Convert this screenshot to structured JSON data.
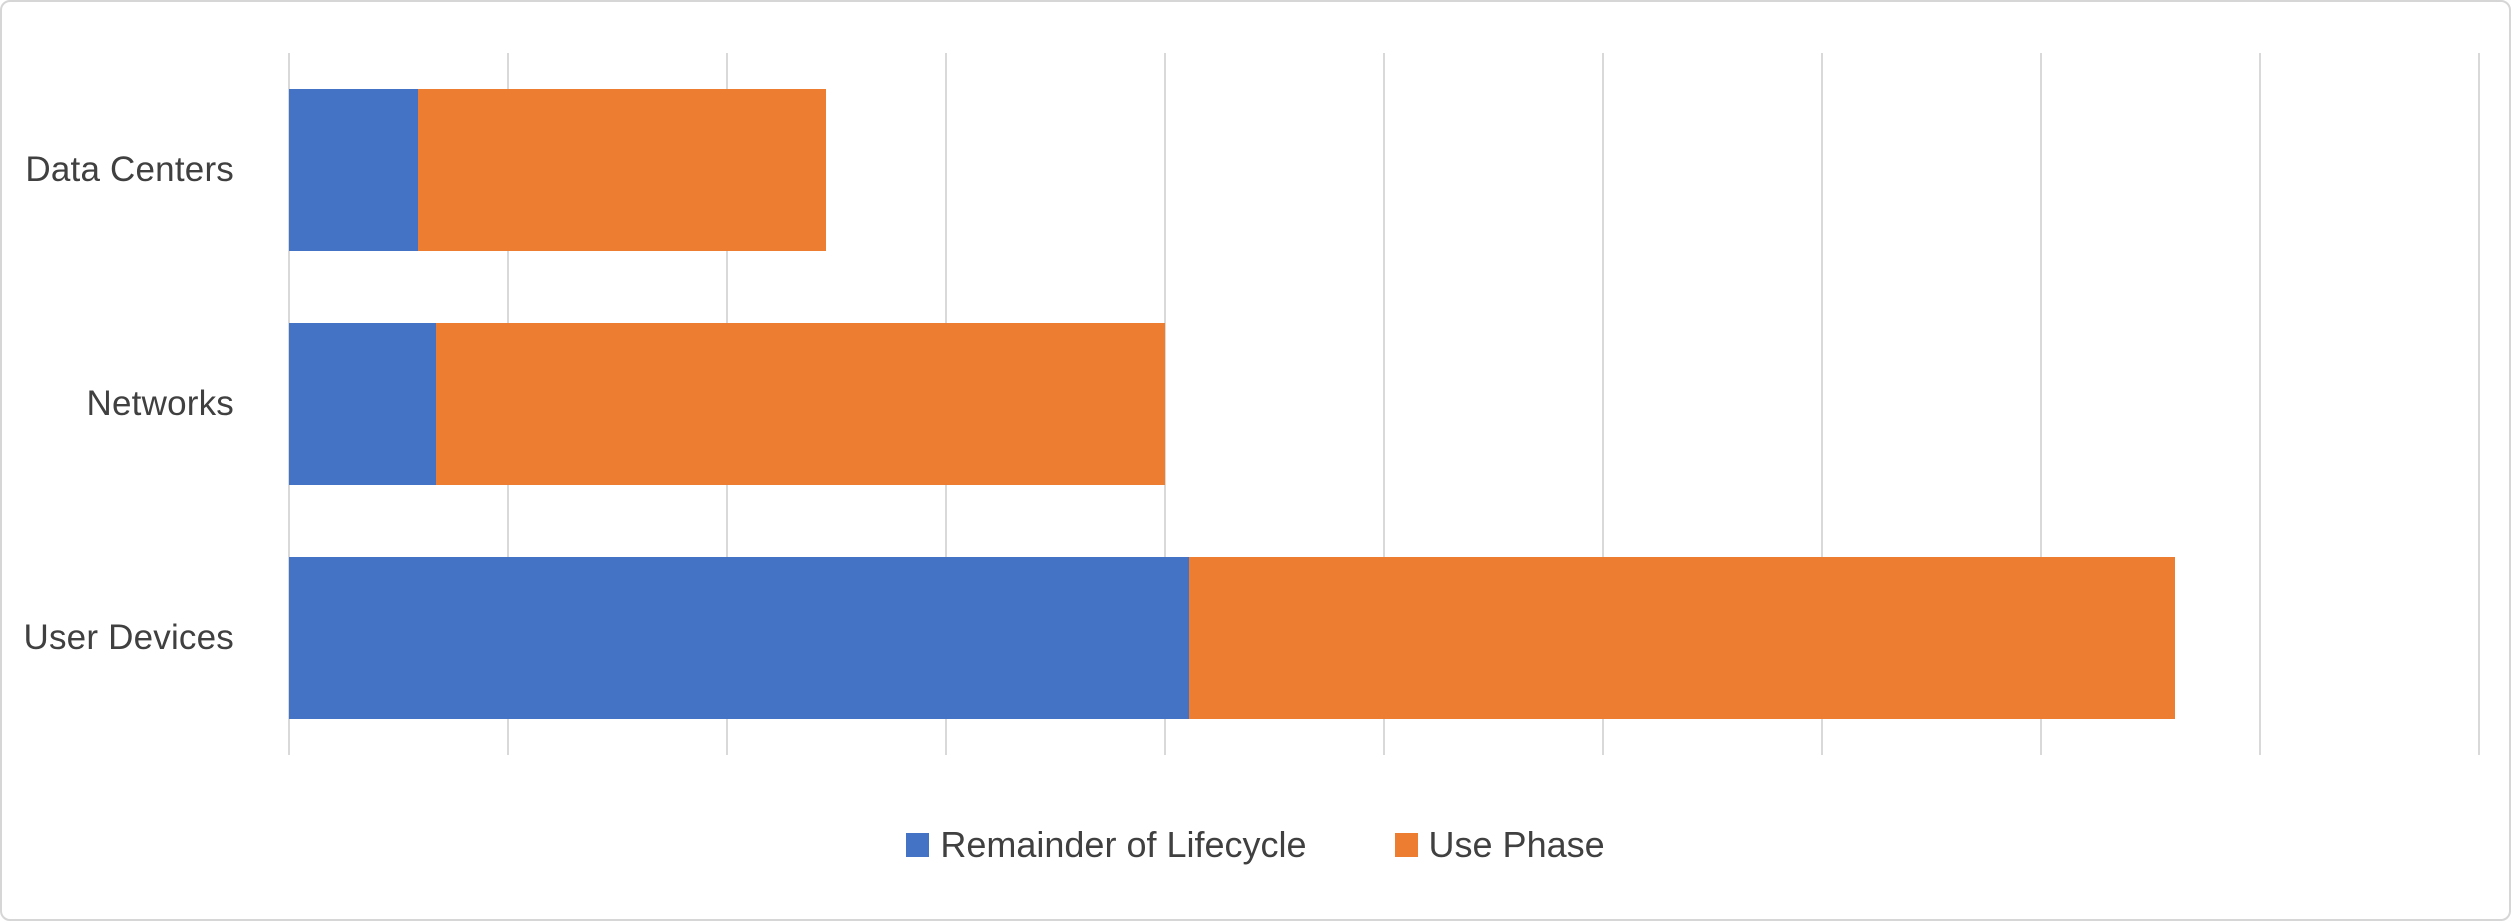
{
  "chart_data": {
    "type": "bar",
    "orientation": "horizontal",
    "stacked": true,
    "title": "",
    "xlabel": "",
    "ylabel": "",
    "categories": [
      "Data Centers",
      "Networks",
      "User Devices"
    ],
    "series": [
      {
        "name": "Remainder of Lifecycle",
        "color": "#4472C4",
        "values": [
          5.9,
          6.7,
          41.1
        ]
      },
      {
        "name": "Use Phase",
        "color": "#ED7D31",
        "values": [
          18.6,
          33.3,
          45.0
        ]
      }
    ],
    "totals": [
      24.5,
      40.0,
      86.1
    ],
    "xlim": [
      0,
      100
    ],
    "gridline_interval": 10,
    "grid": true,
    "axis_tick_labels_visible": false,
    "legend_position": "bottom-center"
  },
  "style": {
    "gridline_color": "#D9D9D9",
    "text_color": "#404040",
    "background_color": "#FFFFFF",
    "border_color": "#D6D6D6"
  }
}
